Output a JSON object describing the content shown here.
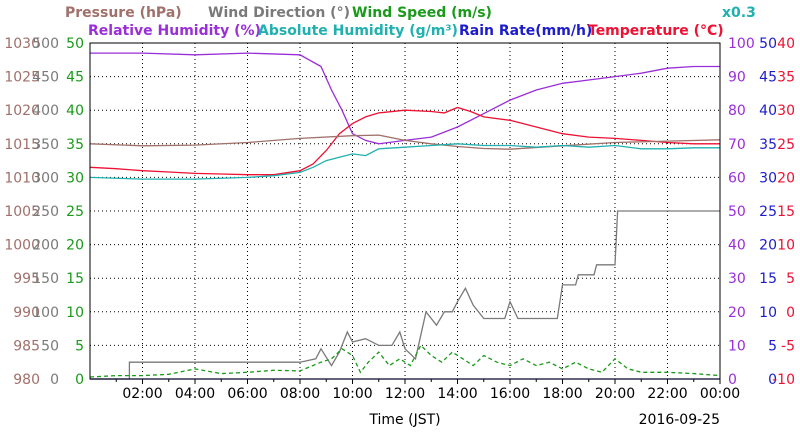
{
  "chart_data": {
    "type": "line",
    "legend": [
      {
        "text": "Pressure (hPa)",
        "color": "#a0706a"
      },
      {
        "text": "Wind Direction (°)",
        "color": "#7a7a7a"
      },
      {
        "text": "Wind Speed (m/s)",
        "color": "#1a9a1a"
      },
      {
        "text": "Relative Humidity (%)",
        "color": "#9a2ed8"
      },
      {
        "text": "Absolute Humidity (g/m³)",
        "color": "#20b0b0"
      },
      {
        "text": "Rain Rate(mm/h)",
        "color": "#1c1ccc"
      },
      {
        "text": "Temperature (°C)",
        "color": "#ee1133"
      },
      {
        "text": "x0.3",
        "color": "#20b0b0"
      }
    ],
    "xlabel": "Time (JST)",
    "date": "2016-09-25",
    "x_ticks": [
      "02:00",
      "04:00",
      "06:00",
      "08:00",
      "10:00",
      "12:00",
      "14:00",
      "16:00",
      "18:00",
      "20:00",
      "22:00",
      "00:00"
    ],
    "axes": {
      "pressure": {
        "ticks": [
          "1030",
          "1025",
          "1020",
          "1015",
          "1010",
          "1005",
          "1000",
          "995",
          "990",
          "985",
          "980"
        ],
        "color": "#a0706a",
        "range": [
          980,
          1030
        ]
      },
      "wind_direction": {
        "ticks": [
          "500",
          "450",
          "400",
          "350",
          "300",
          "250",
          "200",
          "150",
          "100",
          "50",
          "0"
        ],
        "color": "#7a7a7a",
        "range": [
          0,
          500
        ]
      },
      "wind_speed": {
        "ticks": [
          "50",
          "45",
          "40",
          "35",
          "30",
          "25",
          "20",
          "15",
          "10",
          "5",
          "0"
        ],
        "color": "#1a9a1a",
        "range": [
          0,
          50
        ]
      },
      "relative_humidity": {
        "ticks": [
          "100",
          "90",
          "80",
          "70",
          "60",
          "50",
          "40",
          "30",
          "20",
          "10",
          "0"
        ],
        "color": "#9a2ed8",
        "range": [
          0,
          100
        ]
      },
      "rain_rate": {
        "ticks": [
          "50",
          "45",
          "40",
          "35",
          "30",
          "25",
          "20",
          "15",
          "10",
          "5",
          "0"
        ],
        "color": "#1c1ccc",
        "range": [
          0,
          50
        ]
      },
      "temperature": {
        "ticks": [
          "40",
          "35",
          "30",
          "25",
          "20",
          "15",
          "10",
          "5",
          "0",
          "-5",
          "-10"
        ],
        "color": "#ee1133",
        "range": [
          -10,
          40
        ]
      }
    },
    "x_range_hours": [
      0,
      24
    ],
    "series": [
      {
        "name": "Relative Humidity (%)",
        "axis": "relative_humidity",
        "color": "#9a2ed8",
        "points": [
          [
            0,
            97
          ],
          [
            2,
            97
          ],
          [
            4,
            96.5
          ],
          [
            6,
            97
          ],
          [
            8,
            96.5
          ],
          [
            8.8,
            93
          ],
          [
            9.2,
            86
          ],
          [
            9.6,
            80
          ],
          [
            10,
            73
          ],
          [
            10.5,
            71
          ],
          [
            11,
            70
          ],
          [
            12,
            71
          ],
          [
            13,
            72
          ],
          [
            14,
            75
          ],
          [
            15,
            79
          ],
          [
            16,
            83
          ],
          [
            17,
            86
          ],
          [
            18,
            88
          ],
          [
            19,
            89
          ],
          [
            20,
            90
          ],
          [
            21,
            91
          ],
          [
            22,
            92.5
          ],
          [
            23,
            93
          ],
          [
            24,
            93
          ]
        ]
      },
      {
        "name": "Temperature (°C)",
        "axis": "temperature",
        "color": "#ee1133",
        "points": [
          [
            0,
            21.5
          ],
          [
            1,
            21.3
          ],
          [
            2,
            21
          ],
          [
            3,
            20.8
          ],
          [
            4,
            20.6
          ],
          [
            5,
            20.5
          ],
          [
            6,
            20.4
          ],
          [
            7,
            20.4
          ],
          [
            8,
            21
          ],
          [
            8.5,
            22
          ],
          [
            9,
            24
          ],
          [
            9.5,
            26.5
          ],
          [
            10,
            28
          ],
          [
            10.5,
            29
          ],
          [
            11,
            29.6
          ],
          [
            12,
            30
          ],
          [
            13,
            29.8
          ],
          [
            13.5,
            29.6
          ],
          [
            14,
            30.4
          ],
          [
            14.5,
            29.8
          ],
          [
            15,
            29
          ],
          [
            16,
            28.5
          ],
          [
            17,
            27.5
          ],
          [
            18,
            26.5
          ],
          [
            19,
            26
          ],
          [
            20,
            25.8
          ],
          [
            21,
            25.5
          ],
          [
            22,
            25.2
          ],
          [
            23,
            25
          ],
          [
            24,
            25
          ]
        ]
      },
      {
        "name": "Pressure (hPa)",
        "axis": "pressure",
        "color": "#a0706a",
        "points": [
          [
            0,
            1015
          ],
          [
            2,
            1014.7
          ],
          [
            4,
            1014.8
          ],
          [
            6,
            1015.2
          ],
          [
            8,
            1015.8
          ],
          [
            10,
            1016.2
          ],
          [
            11,
            1016.3
          ],
          [
            12,
            1015.5
          ],
          [
            13,
            1015
          ],
          [
            14,
            1014.6
          ],
          [
            15,
            1014.3
          ],
          [
            16,
            1014.2
          ],
          [
            18,
            1014.7
          ],
          [
            20,
            1015.2
          ],
          [
            22,
            1015.4
          ],
          [
            24,
            1015.6
          ]
        ]
      },
      {
        "name": "Absolute Humidity (g/m³)",
        "axis": "relative_humidity",
        "color": "#20b0b0",
        "points": [
          [
            0,
            60
          ],
          [
            2,
            59.5
          ],
          [
            4,
            59.5
          ],
          [
            6,
            60
          ],
          [
            7,
            60.5
          ],
          [
            8,
            61.5
          ],
          [
            8.5,
            63
          ],
          [
            9,
            65
          ],
          [
            9.5,
            66
          ],
          [
            10,
            67
          ],
          [
            10.5,
            66.5
          ],
          [
            11,
            68.5
          ],
          [
            12,
            69
          ],
          [
            13,
            69.5
          ],
          [
            14,
            70
          ],
          [
            15,
            69.5
          ],
          [
            16,
            69.5
          ],
          [
            17,
            69
          ],
          [
            18,
            69.5
          ],
          [
            19,
            69
          ],
          [
            20,
            69.5
          ],
          [
            21,
            68.5
          ],
          [
            22,
            68.5
          ],
          [
            23,
            68.8
          ],
          [
            24,
            68.8
          ]
        ]
      },
      {
        "name": "Wind Direction (°)",
        "axis": "wind_direction",
        "color": "#7a7a7a",
        "points": [
          [
            0,
            0
          ],
          [
            1.5,
            0
          ],
          [
            1.5,
            25
          ],
          [
            8,
            25
          ],
          [
            8.6,
            30
          ],
          [
            8.8,
            45
          ],
          [
            9.2,
            20
          ],
          [
            9.5,
            40
          ],
          [
            9.8,
            70
          ],
          [
            10,
            55
          ],
          [
            10.5,
            60
          ],
          [
            11,
            50
          ],
          [
            11.5,
            50
          ],
          [
            11.8,
            70
          ],
          [
            12,
            45
          ],
          [
            12.4,
            30
          ],
          [
            12.8,
            100
          ],
          [
            13.2,
            80
          ],
          [
            13.5,
            100
          ],
          [
            13.8,
            100
          ],
          [
            14,
            115
          ],
          [
            14.3,
            135
          ],
          [
            14.6,
            110
          ],
          [
            15,
            90
          ],
          [
            15.8,
            90
          ],
          [
            16,
            115
          ],
          [
            16.3,
            90
          ],
          [
            17.8,
            90
          ],
          [
            18,
            140
          ],
          [
            18.5,
            140
          ],
          [
            18.6,
            155
          ],
          [
            19.2,
            155
          ],
          [
            19.3,
            170
          ],
          [
            20,
            170
          ],
          [
            20.1,
            250
          ],
          [
            24,
            250
          ]
        ]
      },
      {
        "name": "Wind Speed (m/s)",
        "axis": "wind_speed",
        "color": "#1a9a1a",
        "style": "dashed",
        "points": [
          [
            0,
            0.3
          ],
          [
            1,
            0.5
          ],
          [
            2,
            0.5
          ],
          [
            3,
            0.7
          ],
          [
            4,
            1.5
          ],
          [
            5,
            0.8
          ],
          [
            6,
            1
          ],
          [
            7,
            1.3
          ],
          [
            8,
            1.2
          ],
          [
            8.8,
            2.5
          ],
          [
            9.2,
            3
          ],
          [
            9.6,
            4.5
          ],
          [
            10,
            3.5
          ],
          [
            10.3,
            1
          ],
          [
            10.6,
            2.5
          ],
          [
            11,
            4
          ],
          [
            11.4,
            2
          ],
          [
            11.8,
            3
          ],
          [
            12.2,
            2
          ],
          [
            12.6,
            5
          ],
          [
            13,
            3.5
          ],
          [
            13.4,
            2.5
          ],
          [
            13.8,
            4
          ],
          [
            14.2,
            3
          ],
          [
            14.6,
            2
          ],
          [
            15,
            3.5
          ],
          [
            15.5,
            2.5
          ],
          [
            16,
            2
          ],
          [
            16.5,
            3
          ],
          [
            17,
            2
          ],
          [
            17.5,
            2.5
          ],
          [
            18,
            1.5
          ],
          [
            18.5,
            2.5
          ],
          [
            19,
            1.5
          ],
          [
            19.5,
            1
          ],
          [
            20,
            3
          ],
          [
            20.5,
            1.5
          ],
          [
            21,
            1
          ],
          [
            22,
            1
          ],
          [
            23,
            0.8
          ],
          [
            24,
            0.5
          ]
        ]
      },
      {
        "name": "Rain Rate(mm/h)",
        "axis": "rain_rate",
        "color": "#1c1ccc",
        "points": [
          [
            0,
            0
          ],
          [
            24,
            0
          ]
        ]
      }
    ]
  }
}
